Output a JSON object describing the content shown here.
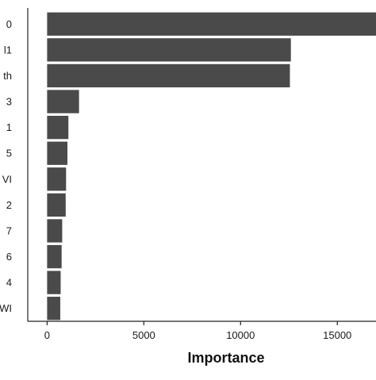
{
  "chart_data": {
    "type": "bar",
    "orientation": "horizontal",
    "categories": [
      "0",
      "l1",
      "th",
      "3",
      "1",
      "5",
      "VI",
      "2",
      "7",
      "6",
      "4",
      "WI"
    ],
    "values": [
      17800,
      12600,
      12550,
      1650,
      1100,
      1050,
      980,
      960,
      780,
      750,
      700,
      680
    ],
    "xlabel": "Importance",
    "ylabel": "",
    "xlim": [
      -1000,
      17000
    ],
    "xticks": [
      0,
      5000,
      10000,
      15000
    ],
    "xtick_labels": [
      "0",
      "5000",
      "10000",
      "15000"
    ],
    "bar_color": "#4a4a4a",
    "grid": false
  }
}
